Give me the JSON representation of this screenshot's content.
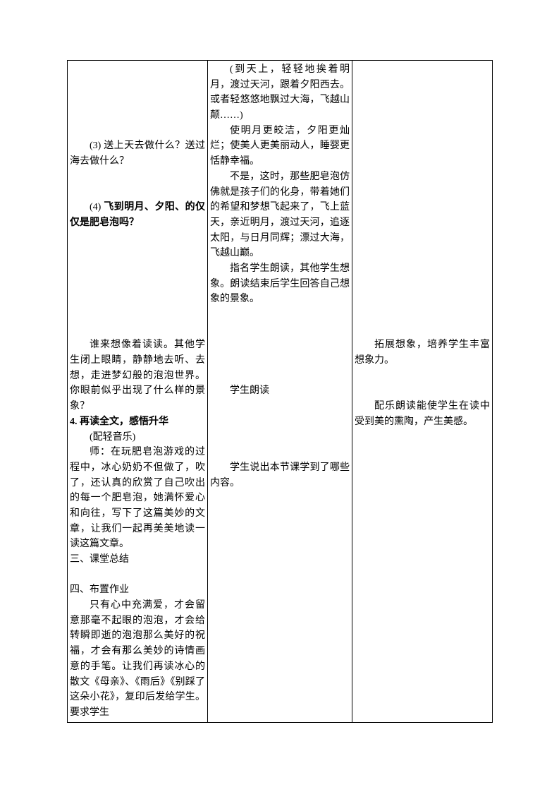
{
  "col1": {
    "p1": "(3) 送上天去做什么？送过海去做什么？",
    "p2_prefix": "(4) ",
    "p2_bold": "飞到明月、夕阳、的仅仅是肥皂泡吗？",
    "p3": "谁来想像着读读。其他学生闭上眼睛，静静地去听、去想，走进梦幻般的泡泡世界。你眼前似乎出现了什么样的景象？",
    "p4_bold": "4. 再读全文，感悟升华",
    "p5": "(配轻音乐)",
    "p6": "师：在玩肥皂泡游戏的过程中，冰心奶奶不但做了，吹了，还认真的欣赏了自己吹出的每一个肥皂泡，她满怀爱心和向往，写下了这篇美妙的文章，让我们一起再美美地读一读这篇文章。",
    "p7": "三、课堂总结",
    "p8": "四、布置作业",
    "p9": "只有心中充满爱，才会留意那毫不起眼的泡泡，才会给转瞬即逝的泡泡那么美好的祝福，才会有那么美妙的诗情画意的手笔。让我们再读冰心的散文《母亲》、《雨后》《别踩了这朵小花》，复印后发给学生。要求学生"
  },
  "col2": {
    "p1": "(到天上，轻轻地挨着明月，渡过天河，跟着夕阳西去。或者轻悠悠地飘过大海，飞越山颠……)",
    "p2": "使明月更皎洁，夕阳更灿烂；使美人更美丽动人，睡婴更恬静幸福。",
    "p3": "不是，这时，那些肥皂泡仿佛就是孩子们的化身，带着她们的希望和梦想飞起来了，飞上蓝天，亲近明月，渡过天河，追逐太阳，与日月同辉；漂过大海，飞越山巅。",
    "p4": "指名学生朗读，其他学生想象。朗读结束后学生回答自己想象的景象。",
    "p5": "学生朗读",
    "p6": "学生说出本节课学到了哪些内容。"
  },
  "col3": {
    "p1": "拓展想象，培养学生丰富想象力。",
    "p2": "配乐朗读能使学生在读中受到美的熏陶，产生美感。"
  }
}
